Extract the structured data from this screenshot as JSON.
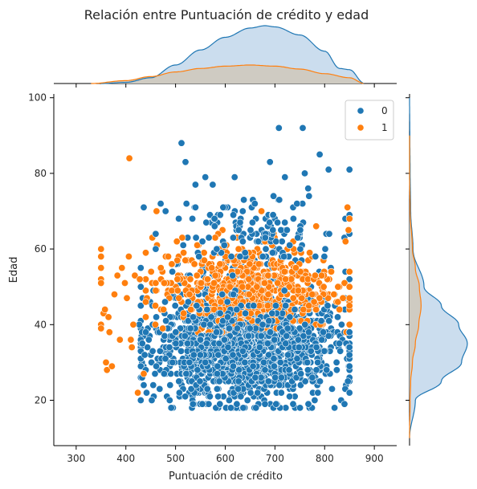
{
  "chart_data": {
    "type": "scatter",
    "subtype": "jointplot",
    "title": "Relación entre Puntuación de crédito y edad",
    "xlabel": "Puntuación de crédito",
    "ylabel": "Edad",
    "xlim": [
      255,
      945
    ],
    "ylim": [
      8,
      101
    ],
    "xticks": [
      300,
      400,
      500,
      600,
      700,
      800,
      900
    ],
    "yticks": [
      20,
      40,
      60,
      80,
      100
    ],
    "legend": {
      "title": "",
      "entries": [
        "0",
        "1"
      ],
      "placement": "top-right"
    },
    "colors": {
      "0": "#1f77b4",
      "1": "#ff7f0e",
      "fill_0": "#c5d9ec",
      "fill_1": "#cfc9bd"
    },
    "series": [
      {
        "name": "0",
        "x_range": [
          430,
          850
        ],
        "y_range": [
          18,
          92
        ],
        "density_x": {
          "x": [
            350,
            400,
            450,
            500,
            550,
            600,
            650,
            680,
            700,
            750,
            800,
            830,
            850,
            880
          ],
          "density": [
            0.0,
            0.02,
            0.1,
            0.32,
            0.58,
            0.8,
            0.96,
            1.0,
            0.98,
            0.84,
            0.56,
            0.26,
            0.24,
            0.0
          ]
        },
        "density_y": {
          "y": [
            10,
            20,
            25,
            30,
            35,
            40,
            45,
            50,
            60,
            70,
            80,
            90,
            100
          ],
          "density": [
            0.0,
            0.1,
            0.55,
            0.9,
            1.0,
            0.85,
            0.55,
            0.25,
            0.06,
            0.02,
            0.01,
            0.005,
            0.0
          ]
        },
        "outliers": [
          [
            512,
            88
          ],
          [
            708,
            92
          ],
          [
            756,
            92
          ],
          [
            790,
            85
          ],
          [
            850,
            81
          ],
          [
            808,
            81
          ],
          [
            690,
            83
          ],
          [
            720,
            79
          ],
          [
            760,
            80
          ],
          [
            520,
            83
          ],
          [
            560,
            79
          ],
          [
            540,
            77
          ],
          [
            470,
            72
          ],
          [
            436,
            71
          ],
          [
            480,
            70
          ],
          [
            430,
            50
          ],
          [
            427,
            40
          ],
          [
            433,
            35
          ],
          [
            780,
            20
          ],
          [
            820,
            18
          ],
          [
            840,
            19
          ],
          [
            850,
            22
          ]
        ]
      },
      {
        "name": "1",
        "x_range": [
          350,
          850
        ],
        "y_range": [
          18,
          84
        ],
        "density_x": {
          "x": [
            330,
            400,
            450,
            500,
            550,
            600,
            650,
            700,
            750,
            800,
            850,
            880
          ],
          "density": [
            0.0,
            0.05,
            0.12,
            0.2,
            0.26,
            0.3,
            0.32,
            0.3,
            0.25,
            0.17,
            0.1,
            0.0
          ]
        },
        "density_y": {
          "y": [
            10,
            20,
            25,
            30,
            35,
            40,
            45,
            50,
            55,
            60,
            70,
            80,
            90
          ],
          "density": [
            0.0,
            0.01,
            0.02,
            0.05,
            0.1,
            0.16,
            0.2,
            0.17,
            0.1,
            0.05,
            0.01,
            0.0,
            0.0
          ]
        },
        "outliers": [
          [
            407,
            84
          ],
          [
            350,
            60
          ],
          [
            350,
            58
          ],
          [
            350,
            55
          ],
          [
            350,
            52
          ],
          [
            350,
            51
          ],
          [
            350,
            40
          ],
          [
            350,
            39
          ],
          [
            355,
            43
          ],
          [
            358,
            44
          ],
          [
            360,
            30
          ],
          [
            362,
            28
          ],
          [
            365,
            42
          ],
          [
            367,
            38
          ],
          [
            372,
            29
          ],
          [
            377,
            48
          ],
          [
            383,
            53
          ],
          [
            388,
            36
          ],
          [
            392,
            55
          ],
          [
            398,
            51
          ],
          [
            402,
            47
          ],
          [
            406,
            58
          ],
          [
            410,
            36
          ],
          [
            412,
            34
          ],
          [
            415,
            40
          ],
          [
            418,
            53
          ],
          [
            424,
            22
          ],
          [
            428,
            52
          ],
          [
            436,
            27
          ],
          [
            440,
            46
          ],
          [
            846,
            71
          ],
          [
            850,
            68
          ],
          [
            848,
            65
          ],
          [
            842,
            62
          ]
        ]
      }
    ]
  }
}
